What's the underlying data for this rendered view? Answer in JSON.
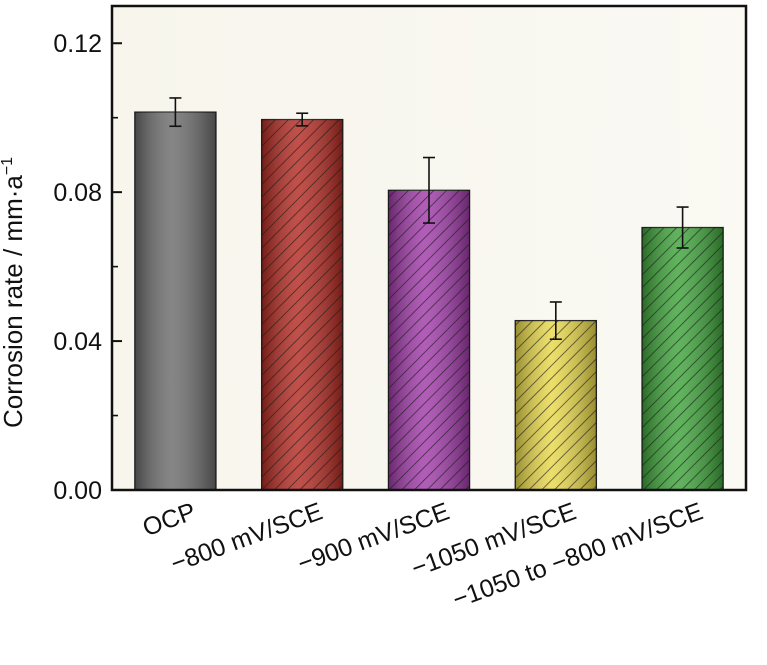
{
  "chart_data": {
    "type": "bar",
    "categories": [
      "OCP",
      "−800 mV/SCE",
      "−900 mV/SCE",
      "−1050 mV/SCE",
      "−1050 to −800 mV/SCE"
    ],
    "values": [
      0.1015,
      0.0995,
      0.0805,
      0.0455,
      0.0705
    ],
    "errors": [
      0.0038,
      0.0017,
      0.0088,
      0.005,
      0.0055
    ],
    "colors": [
      "#6b6b6b",
      "#b32a22",
      "#a03aa8",
      "#e8d84a",
      "#3ea33a"
    ],
    "hatched": [
      false,
      true,
      true,
      true,
      true
    ],
    "title": "",
    "xlabel": "",
    "ylabel": "Corrosion rate / mm·a",
    "ylabel_superscript": "−1",
    "ylim": [
      0,
      0.13
    ],
    "yticks": [
      0.0,
      0.04,
      0.08,
      0.12
    ],
    "ytick_labels": [
      "0.00",
      "0.04",
      "0.08",
      "0.12"
    ],
    "minor_yticks": [
      0.02,
      0.06,
      0.1
    ],
    "grid": false,
    "legend": "none"
  }
}
